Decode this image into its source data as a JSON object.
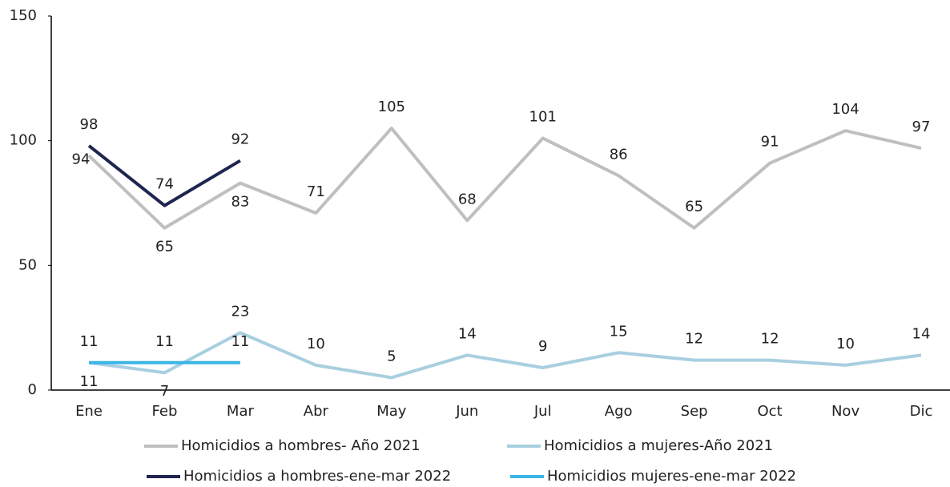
{
  "chart_data": {
    "type": "line",
    "categories": [
      "Ene",
      "Feb",
      "Mar",
      "Abr",
      "May",
      "Jun",
      "Jul",
      "Ago",
      "Sep",
      "Oct",
      "Nov",
      "Dic"
    ],
    "series": [
      {
        "name": "Homicidios a hombres- Año 2021",
        "color": "#bfbfbf",
        "values": [
          94,
          65,
          83,
          71,
          105,
          68,
          101,
          86,
          65,
          91,
          104,
          97
        ]
      },
      {
        "name": "Homicidios a mujeres-Año 2021",
        "color": "#a9cfe0",
        "values": [
          11,
          7,
          23,
          10,
          5,
          14,
          9,
          15,
          12,
          12,
          10,
          14
        ]
      },
      {
        "name": "Homicidios a hombres-ene-mar 2022",
        "color": "#1f2550",
        "values": [
          98,
          74,
          92,
          null,
          null,
          null,
          null,
          null,
          null,
          null,
          null,
          null
        ]
      },
      {
        "name": "Homicidios mujeres-ene-mar 2022",
        "color": "#3ab6e6",
        "values": [
          11,
          11,
          11,
          null,
          null,
          null,
          null,
          null,
          null,
          null,
          null,
          null
        ]
      }
    ],
    "ylim": [
      0,
      150
    ],
    "yticks": [
      0,
      50,
      100,
      150
    ],
    "grid": false
  }
}
